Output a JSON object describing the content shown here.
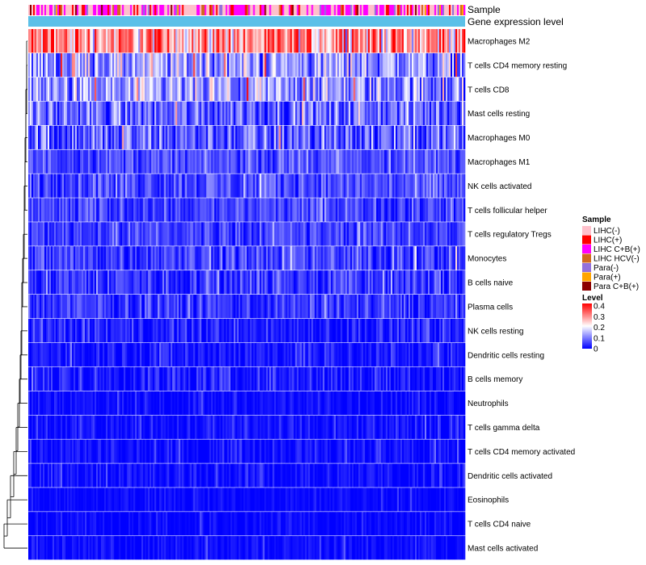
{
  "chart_data": {
    "type": "heatmap",
    "title": "",
    "annotation_tracks": [
      "Sample",
      "Gene expression level"
    ],
    "rows": [
      {
        "label": "Macrophages M2",
        "mean": 0.28,
        "spread": 0.08
      },
      {
        "label": "T cells CD4 memory resting",
        "mean": 0.12,
        "spread": 0.06
      },
      {
        "label": "T cells CD8",
        "mean": 0.11,
        "spread": 0.06
      },
      {
        "label": "Mast cells resting",
        "mean": 0.08,
        "spread": 0.05
      },
      {
        "label": "Macrophages M0",
        "mean": 0.07,
        "spread": 0.06
      },
      {
        "label": "Macrophages M1",
        "mean": 0.06,
        "spread": 0.03
      },
      {
        "label": "NK cells activated",
        "mean": 0.06,
        "spread": 0.035
      },
      {
        "label": "T cells follicular helper",
        "mean": 0.05,
        "spread": 0.03
      },
      {
        "label": "T cells regulatory  Tregs",
        "mean": 0.05,
        "spread": 0.03
      },
      {
        "label": "Monocytes",
        "mean": 0.05,
        "spread": 0.035
      },
      {
        "label": "B cells naive",
        "mean": 0.04,
        "spread": 0.035
      },
      {
        "label": "Plasma cells",
        "mean": 0.04,
        "spread": 0.03
      },
      {
        "label": "NK cells resting",
        "mean": 0.02,
        "spread": 0.03
      },
      {
        "label": "Dendritic cells resting",
        "mean": 0.02,
        "spread": 0.025
      },
      {
        "label": "B cells memory",
        "mean": 0.02,
        "spread": 0.03
      },
      {
        "label": "Neutrophils",
        "mean": 0.01,
        "spread": 0.015
      },
      {
        "label": "T cells gamma delta",
        "mean": 0.01,
        "spread": 0.02
      },
      {
        "label": "T cells CD4 memory activated",
        "mean": 0.01,
        "spread": 0.02
      },
      {
        "label": "Dendritic cells activated",
        "mean": 0.01,
        "spread": 0.02
      },
      {
        "label": "Eosinophils",
        "mean": 0.005,
        "spread": 0.012
      },
      {
        "label": "T cells CD4 naive",
        "mean": 0.005,
        "spread": 0.015
      },
      {
        "label": "Mast cells activated",
        "mean": 0.005,
        "spread": 0.015
      }
    ],
    "n_samples": 270,
    "value_range": [
      0,
      0.4
    ],
    "sample_legend": {
      "title": "Sample",
      "entries": [
        {
          "label": "LIHC(-)",
          "color": "#ffc0cb"
        },
        {
          "label": "LIHC(+)",
          "color": "#ff0000"
        },
        {
          "label": "LIHC C+B(+)",
          "color": "#ff00ff"
        },
        {
          "label": "LIHC HCV(-)",
          "color": "#d2691e"
        },
        {
          "label": "Para(-)",
          "color": "#9370db"
        },
        {
          "label": "Para(+)",
          "color": "#ffa500"
        },
        {
          "label": "Para C+B(+)",
          "color": "#8b0000"
        }
      ]
    },
    "level_legend": {
      "title": "Level",
      "ticks": [
        "0.4",
        "0.3",
        "0.2",
        "0.1",
        "0"
      ],
      "colors": {
        "low": "#0000ff",
        "mid": "#ffffff",
        "high": "#ff0000"
      }
    },
    "expression_track_color": "#5bc0e8"
  }
}
